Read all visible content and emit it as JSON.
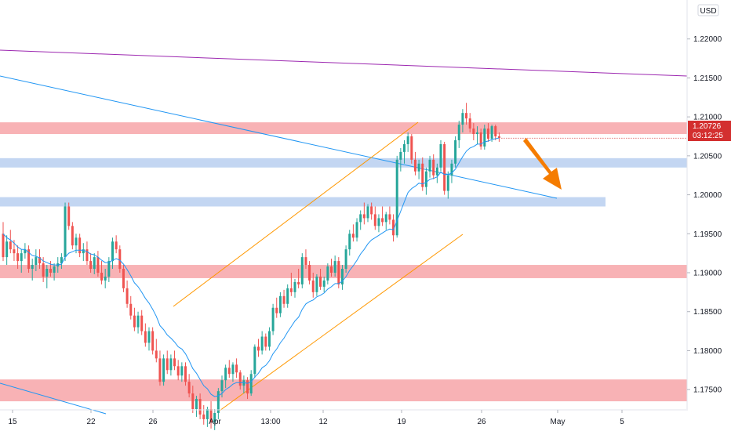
{
  "chart_data": {
    "type": "candlestick",
    "currency": "USD",
    "y_range": [
      1.1725,
      1.225
    ],
    "y_ticks": [
      "1.22000",
      "1.21500",
      "1.21000",
      "1.20500",
      "1.20000",
      "1.19500",
      "1.19000",
      "1.18500",
      "1.18000",
      "1.17500"
    ],
    "x_ticks": [
      "15",
      "22",
      "26",
      "Apr",
      "13:00",
      "12",
      "19",
      "26",
      "May",
      "5"
    ],
    "last_price": "1.20726",
    "countdown": "03:12:25",
    "candles": [
      [
        1.195,
        1.1965,
        1.1915,
        1.192
      ],
      [
        1.192,
        1.1948,
        1.191,
        1.194
      ],
      [
        1.194,
        1.1955,
        1.1925,
        1.193
      ],
      [
        1.193,
        1.1942,
        1.1915,
        1.1925
      ],
      [
        1.1925,
        1.1935,
        1.1905,
        1.1915
      ],
      [
        1.1915,
        1.193,
        1.19,
        1.1925
      ],
      [
        1.1925,
        1.1938,
        1.1918,
        1.193
      ],
      [
        1.193,
        1.1935,
        1.19,
        1.1905
      ],
      [
        1.1905,
        1.1918,
        1.189,
        1.191
      ],
      [
        1.191,
        1.193,
        1.1902,
        1.192
      ],
      [
        1.192,
        1.193,
        1.1905,
        1.1912
      ],
      [
        1.1912,
        1.192,
        1.1888,
        1.1895
      ],
      [
        1.1895,
        1.191,
        1.188,
        1.1905
      ],
      [
        1.1905,
        1.1915,
        1.1895,
        1.19
      ],
      [
        1.19,
        1.1912,
        1.189,
        1.1908
      ],
      [
        1.1908,
        1.192,
        1.19,
        1.1912
      ],
      [
        1.1912,
        1.1925,
        1.1905,
        1.192
      ],
      [
        1.192,
        1.199,
        1.1915,
        1.1985
      ],
      [
        1.1985,
        1.199,
        1.1955,
        1.196
      ],
      [
        1.196,
        1.1965,
        1.193,
        1.1935
      ],
      [
        1.1935,
        1.195,
        1.1925,
        1.1945
      ],
      [
        1.1945,
        1.195,
        1.192,
        1.1925
      ],
      [
        1.1925,
        1.1938,
        1.1915,
        1.193
      ],
      [
        1.193,
        1.194,
        1.191,
        1.1915
      ],
      [
        1.1915,
        1.1925,
        1.19,
        1.1905
      ],
      [
        1.1905,
        1.1925,
        1.1898,
        1.192
      ],
      [
        1.192,
        1.1928,
        1.1895,
        1.19
      ],
      [
        1.19,
        1.1915,
        1.1885,
        1.189
      ],
      [
        1.189,
        1.1905,
        1.188,
        1.1895
      ],
      [
        1.1895,
        1.192,
        1.1888,
        1.1915
      ],
      [
        1.1915,
        1.1945,
        1.1905,
        1.194
      ],
      [
        1.194,
        1.1948,
        1.1925,
        1.193
      ],
      [
        1.193,
        1.1935,
        1.19,
        1.1905
      ],
      [
        1.1905,
        1.191,
        1.1875,
        1.188
      ],
      [
        1.188,
        1.189,
        1.1855,
        1.186
      ],
      [
        1.186,
        1.187,
        1.184,
        1.1845
      ],
      [
        1.1845,
        1.1855,
        1.1825,
        1.183
      ],
      [
        1.183,
        1.185,
        1.1822,
        1.1845
      ],
      [
        1.1845,
        1.1852,
        1.182,
        1.1825
      ],
      [
        1.1825,
        1.1835,
        1.1805,
        1.181
      ],
      [
        1.181,
        1.183,
        1.18,
        1.1825
      ],
      [
        1.1825,
        1.183,
        1.1795,
        1.18
      ],
      [
        1.18,
        1.1815,
        1.1785,
        1.179
      ],
      [
        1.179,
        1.18,
        1.1755,
        1.176
      ],
      [
        1.176,
        1.1795,
        1.1755,
        1.179
      ],
      [
        1.179,
        1.18,
        1.177,
        1.1775
      ],
      [
        1.1775,
        1.1795,
        1.1768,
        1.179
      ],
      [
        1.179,
        1.18,
        1.1775,
        1.178
      ],
      [
        1.178,
        1.1788,
        1.1762,
        1.1768
      ],
      [
        1.1768,
        1.1785,
        1.176,
        1.178
      ],
      [
        1.178,
        1.1785,
        1.1755,
        1.176
      ],
      [
        1.176,
        1.177,
        1.174,
        1.1745
      ],
      [
        1.1745,
        1.1755,
        1.172,
        1.1725
      ],
      [
        1.1725,
        1.1742,
        1.1715,
        1.1738
      ],
      [
        1.1738,
        1.1745,
        1.1712,
        1.1718
      ],
      [
        1.1718,
        1.173,
        1.1705,
        1.1712
      ],
      [
        1.1712,
        1.1728,
        1.1702,
        1.1725
      ],
      [
        1.1725,
        1.1735,
        1.17,
        1.1708
      ],
      [
        1.1708,
        1.1725,
        1.1698,
        1.172
      ],
      [
        1.172,
        1.1752,
        1.1712,
        1.1748
      ],
      [
        1.1748,
        1.1768,
        1.174,
        1.1762
      ],
      [
        1.1762,
        1.1782,
        1.1752,
        1.1778
      ],
      [
        1.1778,
        1.1788,
        1.1765,
        1.177
      ],
      [
        1.177,
        1.1785,
        1.176,
        1.1782
      ],
      [
        1.1782,
        1.179,
        1.1765,
        1.1772
      ],
      [
        1.1772,
        1.1775,
        1.175,
        1.1755
      ],
      [
        1.1755,
        1.1768,
        1.1745,
        1.1762
      ],
      [
        1.1762,
        1.1766,
        1.1738,
        1.1745
      ],
      [
        1.1745,
        1.1775,
        1.1742,
        1.177
      ],
      [
        1.177,
        1.1808,
        1.1765,
        1.1805
      ],
      [
        1.1805,
        1.1815,
        1.1792,
        1.18
      ],
      [
        1.18,
        1.1825,
        1.1795,
        1.1818
      ],
      [
        1.1818,
        1.1822,
        1.18,
        1.1805
      ],
      [
        1.1805,
        1.183,
        1.18,
        1.1825
      ],
      [
        1.1825,
        1.186,
        1.182,
        1.1855
      ],
      [
        1.1855,
        1.1868,
        1.1842,
        1.1848
      ],
      [
        1.1848,
        1.1875,
        1.1843,
        1.187
      ],
      [
        1.187,
        1.1878,
        1.1855,
        1.186
      ],
      [
        1.186,
        1.1885,
        1.1855,
        1.188
      ],
      [
        1.188,
        1.19,
        1.187,
        1.1875
      ],
      [
        1.1875,
        1.1892,
        1.1868,
        1.1888
      ],
      [
        1.1888,
        1.1905,
        1.188,
        1.1885
      ],
      [
        1.1885,
        1.1925,
        1.188,
        1.192
      ],
      [
        1.192,
        1.193,
        1.1905,
        1.191
      ],
      [
        1.191,
        1.1915,
        1.1885,
        1.189
      ],
      [
        1.189,
        1.19,
        1.1868,
        1.1875
      ],
      [
        1.1875,
        1.1898,
        1.187,
        1.1895
      ],
      [
        1.1895,
        1.1905,
        1.1878,
        1.1882
      ],
      [
        1.1882,
        1.1895,
        1.1875,
        1.189
      ],
      [
        1.189,
        1.1912,
        1.1885,
        1.1908
      ],
      [
        1.1908,
        1.1918,
        1.1895,
        1.19
      ],
      [
        1.19,
        1.1922,
        1.1895,
        1.1915
      ],
      [
        1.1915,
        1.192,
        1.188,
        1.1885
      ],
      [
        1.1885,
        1.191,
        1.1878,
        1.1905
      ],
      [
        1.1905,
        1.1935,
        1.19,
        1.193
      ],
      [
        1.193,
        1.1955,
        1.1922,
        1.195
      ],
      [
        1.195,
        1.1962,
        1.194,
        1.1945
      ],
      [
        1.1945,
        1.197,
        1.194,
        1.1965
      ],
      [
        1.1965,
        1.198,
        1.1955,
        1.1975
      ],
      [
        1.1975,
        1.199,
        1.1962,
        1.197
      ],
      [
        1.197,
        1.1988,
        1.1965,
        1.1985
      ],
      [
        1.1985,
        1.199,
        1.1968,
        1.1975
      ],
      [
        1.1975,
        1.1985,
        1.1955,
        1.196
      ],
      [
        1.196,
        1.1975,
        1.1952,
        1.197
      ],
      [
        1.197,
        1.1985,
        1.196,
        1.1965
      ],
      [
        1.1965,
        1.1978,
        1.1955,
        1.1975
      ],
      [
        1.1975,
        1.1985,
        1.1962,
        1.1968
      ],
      [
        1.1968,
        1.1975,
        1.194,
        1.1948
      ],
      [
        1.1948,
        1.205,
        1.1945,
        1.2045
      ],
      [
        1.2045,
        1.206,
        1.203,
        1.2055
      ],
      [
        1.2055,
        1.207,
        1.204,
        1.2065
      ],
      [
        1.2065,
        1.208,
        1.2055,
        1.2075
      ],
      [
        1.2075,
        1.2078,
        1.204,
        1.2045
      ],
      [
        1.2045,
        1.2055,
        1.2025,
        1.203
      ],
      [
        1.203,
        1.2045,
        1.202,
        1.204
      ],
      [
        1.204,
        1.2048,
        1.2005,
        1.201
      ],
      [
        1.201,
        1.2035,
        1.2,
        1.203
      ],
      [
        1.203,
        1.205,
        1.2022,
        1.2045
      ],
      [
        1.2045,
        1.2052,
        1.202,
        1.2025
      ],
      [
        1.2025,
        1.204,
        1.2015,
        1.2035
      ],
      [
        1.2035,
        1.207,
        1.203,
        1.2065
      ],
      [
        1.2065,
        1.2068,
        1.2,
        1.2005
      ],
      [
        1.2005,
        1.203,
        1.1995,
        1.2025
      ],
      [
        1.2025,
        1.2045,
        1.2015,
        1.204
      ],
      [
        1.204,
        1.2075,
        1.2035,
        1.207
      ],
      [
        1.207,
        1.2095,
        1.206,
        1.209
      ],
      [
        1.209,
        1.211,
        1.208,
        1.2105
      ],
      [
        1.2105,
        1.2118,
        1.209,
        1.2098
      ],
      [
        1.2098,
        1.2105,
        1.208,
        1.2085
      ],
      [
        1.2085,
        1.2092,
        1.207,
        1.2078
      ],
      [
        1.2078,
        1.2088,
        1.2065,
        1.208
      ],
      [
        1.208,
        1.2085,
        1.2058,
        1.2062
      ],
      [
        1.2062,
        1.209,
        1.2058,
        1.2085
      ],
      [
        1.2085,
        1.2092,
        1.2068,
        1.2072
      ],
      [
        1.2072,
        1.209,
        1.2068,
        1.2088
      ],
      [
        1.2088,
        1.209,
        1.207,
        1.2075
      ],
      [
        1.2075,
        1.208,
        1.2068,
        1.2073
      ]
    ],
    "ema": [
      1.195,
      1.1945,
      1.1942,
      1.1938,
      1.1933,
      1.193,
      1.193,
      1.1926,
      1.1922,
      1.1921,
      1.1919,
      1.1915,
      1.1913,
      1.1911,
      1.191,
      1.191,
      1.1911,
      1.192,
      1.1925,
      1.1927,
      1.1929,
      1.1929,
      1.1929,
      1.1927,
      1.1924,
      1.1923,
      1.192,
      1.1916,
      1.1913,
      1.1913,
      1.1916,
      1.1918,
      1.1916,
      1.1911,
      1.1904,
      1.1896,
      1.1887,
      1.1882,
      1.1875,
      1.1867,
      1.1861,
      1.1853,
      1.1844,
      1.1832,
      1.1827,
      1.182,
      1.1816,
      1.1811,
      1.1805,
      1.1802,
      1.1796,
      1.1787,
      1.1777,
      1.1771,
      1.1763,
      1.1755,
      1.1751,
      1.1744,
      1.1741,
      1.1742,
      1.1745,
      1.175,
      1.1753,
      1.1757,
      1.1759,
      1.1759,
      1.1759,
      1.1758,
      1.176,
      1.1766,
      1.1771,
      1.1778,
      1.1781,
      1.1787,
      1.1796,
      1.1802,
      1.181,
      1.1816,
      1.1824,
      1.1831,
      1.1838,
      1.1843,
      1.1853,
      1.186,
      1.1863,
      1.1865,
      1.1869,
      1.1871,
      1.1874,
      1.1879,
      1.1882,
      1.1886,
      1.1886,
      1.1889,
      1.1895,
      1.1903,
      1.1909,
      1.1916,
      1.1924,
      1.193,
      1.1937,
      1.1942,
      1.1945,
      1.1948,
      1.1951,
      1.1954,
      1.1956,
      1.1955,
      1.1967,
      1.1979,
      1.1991,
      1.2003,
      1.2008,
      1.2011,
      1.2015,
      1.2014,
      1.2016,
      1.202,
      1.2021,
      1.2023,
      1.2029,
      1.2026,
      1.2026,
      1.2028,
      1.2033,
      1.2041,
      1.2049,
      1.2056,
      1.206,
      1.2062,
      1.2065,
      1.2065,
      1.2068,
      1.2069,
      1.2071,
      1.2072,
      1.2073
    ],
    "zones": [
      {
        "color": "#f7a4a8",
        "from": 1.2078,
        "to": 1.2093
      },
      {
        "color": "#b9cff0",
        "from": 1.2035,
        "to": 1.2047
      },
      {
        "color": "#b9cff0",
        "from": 1.1985,
        "to": 1.1997
      },
      {
        "color": "#f7a4a8",
        "from": 1.1893,
        "to": 1.191
      },
      {
        "color": "#f7a4a8",
        "from": 1.1735,
        "to": 1.1763
      }
    ],
    "colors": {
      "up": "#26a69a",
      "down": "#ef5350",
      "ema": "#2196f3",
      "resistance_trend": "#9c27b0",
      "descending_trend": "#2196f3",
      "channel": "#ff9800",
      "arrow": "#f57c00",
      "price_label": "#d32f2f"
    }
  }
}
